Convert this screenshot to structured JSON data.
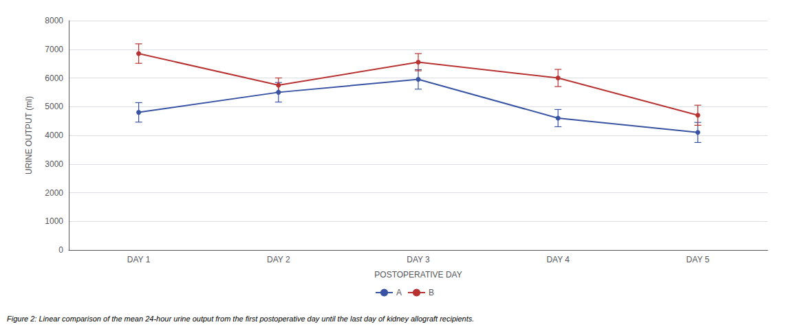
{
  "chart_data": {
    "type": "line",
    "xlabel": "POSTOPERATIVE DAY",
    "ylabel": "URINE OUTPUT (ml)",
    "caption": "Figure 2: Linear comparison of the mean 24-hour urine output from the first postoperative day until the last day of kidney allograft recipients.",
    "categories": [
      "DAY 1",
      "DAY 2",
      "DAY 3",
      "DAY 4",
      "DAY 5"
    ],
    "series": [
      {
        "name": "A",
        "color": "#3953a4",
        "values": [
          4800,
          5500,
          5950,
          4600,
          4100
        ],
        "errors": [
          340,
          340,
          340,
          300,
          350
        ]
      },
      {
        "name": "B",
        "color": "#b83232",
        "values": [
          6850,
          5750,
          6550,
          6000,
          4700
        ],
        "errors": [
          340,
          250,
          300,
          300,
          350
        ]
      }
    ],
    "ylim": [
      0,
      8000
    ],
    "yticks": [
      0,
      1000,
      2000,
      3000,
      4000,
      5000,
      6000,
      7000,
      8000
    ],
    "grid": true,
    "legend": "bottom",
    "marker": "circle"
  }
}
